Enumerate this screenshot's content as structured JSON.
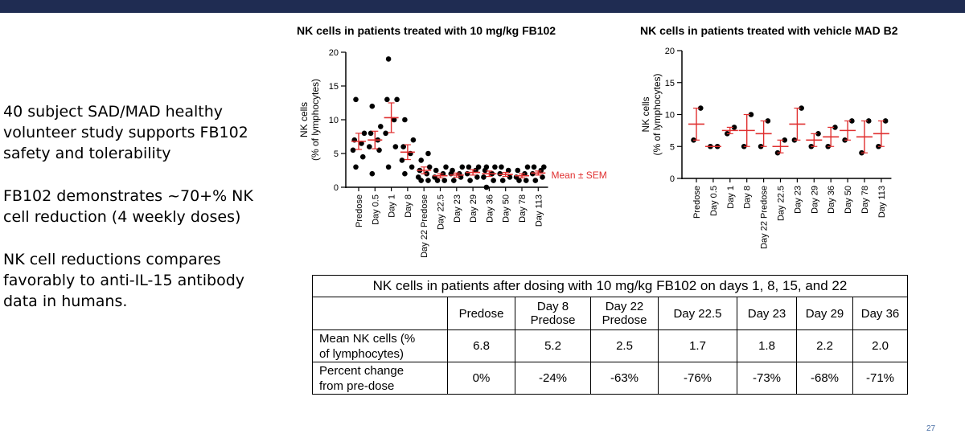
{
  "bullets": [
    "40 subject SAD/MAD healthy volunteer study supports FB102 safety and tolerability",
    "FB102 demonstrates ~70+% NK cell reduction (4 weekly doses)",
    "NK cell reductions compares favorably to anti-IL-15 antibody data in humans."
  ],
  "colors": {
    "header_bar": "#1f2c52",
    "mean_line": "#e03030",
    "points": "#000000",
    "page_number": "#4a6fa5"
  },
  "chart_data": [
    {
      "type": "scatter",
      "title": "NK cells in patients treated with 10 mg/kg FB102",
      "ylabel": [
        "NK cells",
        "(% of lymphocytes)"
      ],
      "ylim": [
        0,
        20
      ],
      "yticks": [
        "0",
        "5",
        "10",
        "15",
        "20"
      ],
      "categories": [
        "Predose",
        "Day 0.5",
        "Day 1",
        "Day 8",
        "Day 22 Predose",
        "Day 22.5",
        "Day 23",
        "Day 29",
        "Day 36",
        "Day 50",
        "Day 78",
        "Day 113"
      ],
      "points": [
        [
          3,
          4.5,
          5.5,
          6.5,
          7,
          8,
          13
        ],
        [
          2,
          5.5,
          6,
          7,
          8,
          9,
          12
        ],
        [
          3,
          6,
          8,
          10,
          13,
          13,
          19
        ],
        [
          2,
          3,
          4,
          5,
          6,
          7,
          10
        ],
        [
          1,
          1,
          1.5,
          2,
          2.5,
          3,
          4,
          5
        ],
        [
          1,
          1,
          1.5,
          2,
          2.5,
          3
        ],
        [
          1,
          1.5,
          2,
          2,
          2.5,
          3
        ],
        [
          1,
          1.5,
          2,
          2.5,
          3,
          3
        ],
        [
          0,
          1,
          1.5,
          2,
          2.5,
          3,
          3
        ],
        [
          1,
          1.5,
          2,
          2.5,
          3
        ],
        [
          1,
          1,
          1.5,
          2,
          2.5,
          3
        ],
        [
          1,
          1.5,
          2,
          2.5,
          3,
          3
        ]
      ],
      "means": [
        6.8,
        7,
        10.3,
        5.2,
        2.5,
        1.7,
        1.8,
        2.2,
        2.0,
        1.9,
        1.7,
        2.1
      ],
      "sem": [
        1.2,
        1.3,
        2.2,
        1.1,
        0.5,
        0.3,
        0.3,
        0.4,
        0.4,
        0.3,
        0.3,
        0.3
      ],
      "legend": "Mean ± SEM"
    },
    {
      "type": "scatter",
      "title": "NK cells in patients treated with vehicle MAD B2",
      "ylabel": [
        "NK cells",
        "(% of lymphocytes)"
      ],
      "ylim": [
        0,
        20
      ],
      "yticks": [
        "0",
        "5",
        "10",
        "15",
        "20"
      ],
      "categories": [
        "Predose",
        "Day 0.5",
        "Day 1",
        "Day 8",
        "Day 22 Predose",
        "Day 22.5",
        "Day 23",
        "Day 29",
        "Day 36",
        "Day 50",
        "Day 78",
        "Day 113"
      ],
      "points": [
        [
          6,
          11
        ],
        [
          5,
          5
        ],
        [
          7,
          8
        ],
        [
          5,
          10
        ],
        [
          5,
          9
        ],
        [
          4,
          6
        ],
        [
          6,
          11
        ],
        [
          5,
          7
        ],
        [
          5,
          8
        ],
        [
          6,
          9
        ],
        [
          4,
          9
        ],
        [
          5,
          9
        ]
      ],
      "means": [
        8.5,
        5,
        7.5,
        7.5,
        7,
        5,
        8.5,
        6,
        6.5,
        7.5,
        6.5,
        7
      ],
      "sem": [
        2.5,
        0,
        0.5,
        2.5,
        2,
        1,
        2.5,
        1,
        1.5,
        1.5,
        2.5,
        2
      ]
    },
    {
      "type": "table",
      "caption": "NK cells in patients after dosing with 10 mg/kg FB102 on days 1, 8, 15, and 22",
      "columns": [
        [
          "Predose"
        ],
        [
          "Day 8",
          "Predose"
        ],
        [
          "Day 22",
          "Predose"
        ],
        [
          "Day 22.5"
        ],
        [
          "Day 23"
        ],
        [
          "Day 29"
        ],
        [
          "Day 36"
        ]
      ],
      "rows": [
        {
          "label": [
            "Mean NK cells (%",
            "of lymphocytes)"
          ],
          "values": [
            "6.8",
            "5.2",
            "2.5",
            "1.7",
            "1.8",
            "2.2",
            "2.0"
          ]
        },
        {
          "label": [
            "Percent change",
            "from pre-dose"
          ],
          "values": [
            "0%",
            "-24%",
            "-63%",
            "-76%",
            "-73%",
            "-68%",
            "-71%"
          ]
        }
      ]
    }
  ],
  "page_number": "27"
}
